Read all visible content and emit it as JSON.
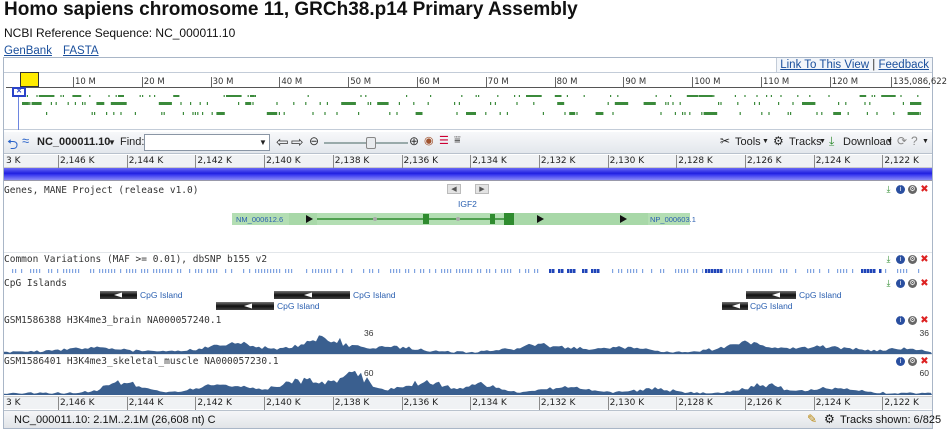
{
  "page": {
    "title": "Homo sapiens chromosome 11, GRCh38.p14 Primary Assembly",
    "subtitle": "NCBI Reference Sequence: NC_000011.10",
    "links": [
      "GenBank",
      "FASTA"
    ]
  },
  "linkbar": {
    "link_view": "Link To This View",
    "separator": "|",
    "feedback": "Feedback"
  },
  "overview": {
    "ticks": [
      "10 M",
      "20 M",
      "30 M",
      "40 M",
      "50 M",
      "60 M",
      "70 M",
      "80 M",
      "90 M",
      "100 M",
      "110 M",
      "120 M",
      "135,086,622"
    ]
  },
  "toolbar": {
    "accession": "NC_000011.10",
    "find_label": "Find:",
    "find_value": "",
    "tools_label": "Tools",
    "tracks_label": "Tracks",
    "download_label": "Download"
  },
  "ruler": {
    "ticks": [
      "3 K",
      "2,146 K",
      "2,144 K",
      "2,142 K",
      "2,140 K",
      "2,138 K",
      "2,136 K",
      "2,134 K",
      "2,132 K",
      "2,130 K",
      "2,128 K",
      "2,126 K",
      "2,124 K",
      "2,122 K"
    ]
  },
  "tracks": {
    "genes_name": "Genes, MANE Project (release v1.0)",
    "gene_symbol": "IGF2",
    "transcript_left": "NM_000612.6",
    "transcript_right": "NP_000603.1",
    "variations_name": "Common Variations (MAF >= 0.01), dbSNP b155 v2",
    "cpg_name": "CpG Islands",
    "cpg_label": "CpG Island",
    "brain_name": "GSM1586388 H3K4me3_brain NA000057240.1",
    "brain_max": "36",
    "muscle_name": "GSM1586401 H3K4me3_skeletal_muscle NA000057230.1",
    "muscle_max": "60"
  },
  "status": {
    "range": "NC_000011.10: 2.1M..2.1M (26,608 nt) C",
    "tracks_shown": "Tracks shown: 6/825"
  },
  "colors": {
    "link": "#1a4f9c",
    "gene": "#2e8b2e",
    "coverage": "#3a5f8f",
    "seqbar": "#2020e0"
  }
}
